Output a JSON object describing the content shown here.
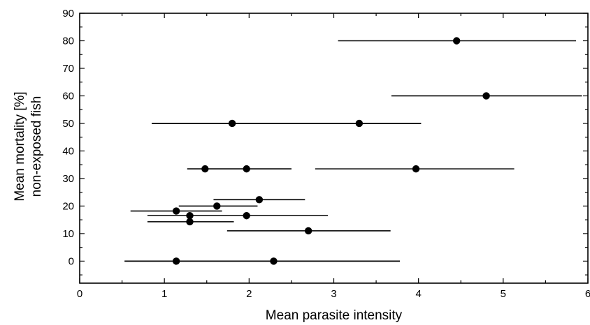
{
  "chart_data": {
    "type": "scatter",
    "title": "",
    "xlabel": "Mean parasite intensity",
    "ylabel": [
      "Mean mortality [%]",
      "non-exposed fish"
    ],
    "xlim": [
      0,
      6
    ],
    "ylim": [
      -8,
      90
    ],
    "xticks": [
      "0",
      "1",
      "2",
      "3",
      "4",
      "5",
      "6"
    ],
    "yticks": [
      "0",
      "10",
      "20",
      "30",
      "40",
      "50",
      "60",
      "70",
      "80",
      "90"
    ],
    "grid": false,
    "legend": "none",
    "points": [
      {
        "x": 4.45,
        "y": 80,
        "xerr": [
          3.05,
          5.86
        ]
      },
      {
        "x": 4.8,
        "y": 60,
        "xerr": [
          3.68,
          5.93
        ]
      },
      {
        "x": 1.8,
        "y": 50,
        "xerr": [
          0.85,
          4.03
        ]
      },
      {
        "x": 3.3,
        "y": 50,
        "xerr": [
          0.85,
          4.03
        ]
      },
      {
        "x": 1.48,
        "y": 33.5,
        "xerr": [
          1.27,
          2.5
        ]
      },
      {
        "x": 1.97,
        "y": 33.5,
        "xerr": [
          1.27,
          2.5
        ]
      },
      {
        "x": 3.97,
        "y": 33.5,
        "xerr": [
          2.78,
          5.13
        ]
      },
      {
        "x": 2.12,
        "y": 22.3,
        "xerr": [
          1.58,
          2.66
        ]
      },
      {
        "x": 1.62,
        "y": 20,
        "xerr": [
          1.17,
          2.1
        ]
      },
      {
        "x": 1.14,
        "y": 18.2,
        "xerr": [
          0.6,
          1.68
        ]
      },
      {
        "x": 1.3,
        "y": 16.5,
        "xerr": [
          0.8,
          1.65
        ]
      },
      {
        "x": 1.97,
        "y": 16.5,
        "xerr": [
          1.3,
          2.93
        ]
      },
      {
        "x": 1.3,
        "y": 14.3,
        "xerr": [
          0.8,
          1.82
        ]
      },
      {
        "x": 2.7,
        "y": 11,
        "xerr": [
          1.74,
          3.67
        ]
      },
      {
        "x": 1.14,
        "y": 0,
        "xerr": [
          0.53,
          3.78
        ]
      },
      {
        "x": 2.29,
        "y": 0,
        "xerr": [
          0.53,
          3.78
        ]
      }
    ]
  }
}
